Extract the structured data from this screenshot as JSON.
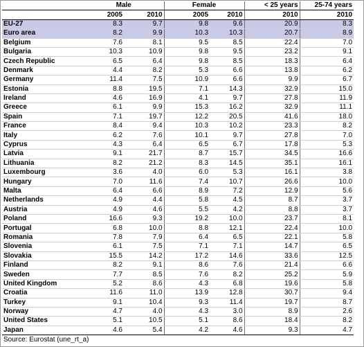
{
  "table": {
    "groups": {
      "male": "Male",
      "female": "Female",
      "under25": "< 25 years",
      "age25_74": "25-74 years"
    },
    "years": [
      "2005",
      "2010",
      "2005",
      "2010",
      "2010",
      "2010"
    ],
    "rows": [
      {
        "country": "EU-27",
        "values": [
          "8.3",
          "9.7",
          "9.8",
          "9.6",
          "20.9",
          "8.3"
        ],
        "highlight": true
      },
      {
        "country": "Euro area",
        "values": [
          "8.2",
          "9.9",
          "10.3",
          "10.3",
          "20.7",
          "8.9"
        ],
        "highlight": true
      },
      {
        "country": "Belgium",
        "values": [
          "7.6",
          "8.1",
          "9.5",
          "8.5",
          "22.4",
          "7.0"
        ]
      },
      {
        "country": "Bulgaria",
        "values": [
          "10.3",
          "10.9",
          "9.8",
          "9.5",
          "23.2",
          "9.1"
        ]
      },
      {
        "country": "Czech Republic",
        "values": [
          "6.5",
          "6.4",
          "9.8",
          "8.5",
          "18.3",
          "6.4"
        ]
      },
      {
        "country": "Denmark",
        "values": [
          "4.4",
          "8.2",
          "5.3",
          "6.6",
          "13.8",
          "6.2"
        ]
      },
      {
        "country": "Germany",
        "values": [
          "11.4",
          "7.5",
          "10.9",
          "6.6",
          "9.9",
          "6.7"
        ]
      },
      {
        "country": "Estonia",
        "values": [
          "8.8",
          "19.5",
          "7.1",
          "14.3",
          "32.9",
          "15.0"
        ]
      },
      {
        "country": "Ireland",
        "values": [
          "4.6",
          "16.9",
          "4.1",
          "9.7",
          "27.8",
          "11.9"
        ]
      },
      {
        "country": "Greece",
        "values": [
          "6.1",
          "9.9",
          "15.3",
          "16.2",
          "32.9",
          "11.1"
        ]
      },
      {
        "country": "Spain",
        "values": [
          "7.1",
          "19.7",
          "12.2",
          "20.5",
          "41.6",
          "18.0"
        ]
      },
      {
        "country": "France",
        "values": [
          "8.4",
          "9.4",
          "10.3",
          "10.2",
          "23.3",
          "8.2"
        ]
      },
      {
        "country": "Italy",
        "values": [
          "6.2",
          "7.6",
          "10.1",
          "9.7",
          "27.8",
          "7.0"
        ]
      },
      {
        "country": "Cyprus",
        "values": [
          "4.3",
          "6.4",
          "6.5",
          "6.7",
          "17.8",
          "5.3"
        ]
      },
      {
        "country": "Latvia",
        "values": [
          "9.1",
          "21.7",
          "8.7",
          "15.7",
          "34.5",
          "16.6"
        ]
      },
      {
        "country": "Lithuania",
        "values": [
          "8.2",
          "21.2",
          "8.3",
          "14.5",
          "35.1",
          "16.1"
        ]
      },
      {
        "country": "Luxembourg",
        "values": [
          "3.6",
          "4.0",
          "6.0",
          "5.3",
          "16.1",
          "3.8"
        ]
      },
      {
        "country": "Hungary",
        "values": [
          "7.0",
          "11.6",
          "7.4",
          "10.7",
          "26.6",
          "10.0"
        ]
      },
      {
        "country": "Malta",
        "values": [
          "6.4",
          "6.6",
          "8.9",
          "7.2",
          "12.9",
          "5.6"
        ]
      },
      {
        "country": "Netherlands",
        "values": [
          "4.9",
          "4.4",
          "5.8",
          "4.5",
          "8.7",
          "3.7"
        ]
      },
      {
        "country": "Austria",
        "values": [
          "4.9",
          "4.6",
          "5.5",
          "4.2",
          "8.8",
          "3.7"
        ]
      },
      {
        "country": "Poland",
        "values": [
          "16.6",
          "9.3",
          "19.2",
          "10.0",
          "23.7",
          "8.1"
        ]
      },
      {
        "country": "Portugal",
        "values": [
          "6.8",
          "10.0",
          "8.8",
          "12.1",
          "22.4",
          "10.0"
        ]
      },
      {
        "country": "Romania",
        "values": [
          "7.8",
          "7.9",
          "6.4",
          "6.5",
          "22.1",
          "5.8"
        ]
      },
      {
        "country": "Slovenia",
        "values": [
          "6.1",
          "7.5",
          "7.1",
          "7.1",
          "14.7",
          "6.5"
        ]
      },
      {
        "country": "Slovakia",
        "values": [
          "15.5",
          "14.2",
          "17.2",
          "14.6",
          "33.6",
          "12.5"
        ]
      },
      {
        "country": "Finland",
        "values": [
          "8.2",
          "9.1",
          "8.6",
          "7.6",
          "21.4",
          "6.6"
        ]
      },
      {
        "country": "Sweden",
        "values": [
          "7.7",
          "8.5",
          "7.6",
          "8.2",
          "25.2",
          "5.9"
        ]
      },
      {
        "country": "United Kingdom",
        "values": [
          "5.2",
          "8.6",
          "4.3",
          "6.8",
          "19.6",
          "5.8"
        ]
      },
      {
        "country": "Croatia",
        "values": [
          "11.6",
          "11.0",
          "13.9",
          "12.8",
          "30.7",
          "9.4"
        ]
      },
      {
        "country": "Turkey",
        "values": [
          "9.1",
          "10.4",
          "9.3",
          "11.4",
          "19.7",
          "8.7"
        ]
      },
      {
        "country": "Norway",
        "values": [
          "4.7",
          "4.0",
          "4.3",
          "3.0",
          "8.9",
          "2.6"
        ]
      },
      {
        "country": "United States",
        "values": [
          "5.1",
          "10.5",
          "5.1",
          "8.6",
          "18.4",
          "8.2"
        ]
      },
      {
        "country": "Japan",
        "values": [
          "4.6",
          "5.4",
          "4.2",
          "4.6",
          "9.3",
          "4.7"
        ]
      }
    ]
  },
  "source": "Source: Eurostat (une_rt_a)",
  "colors": {
    "highlight_row": "#c9c9e8",
    "border": "#000000",
    "row_rule": "#cfcfcf"
  }
}
